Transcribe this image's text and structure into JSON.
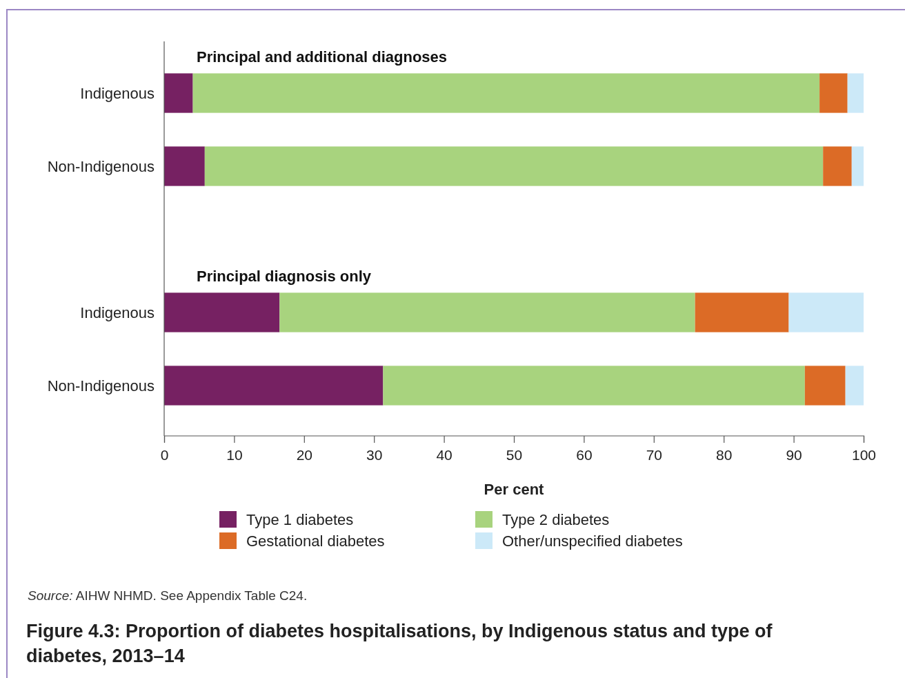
{
  "chart_data": {
    "type": "bar",
    "orientation": "horizontal",
    "stacked": true,
    "title": "Figure 4.3: Proportion of diabetes hospitalisations, by Indigenous status and type of diabetes, 2013–14",
    "xlabel": "Per cent",
    "annotations": [
      "Principal and additional diagnoses",
      "Principal diagnosis only",
      "Source: AIHW NHMD. See Appendix Table C24."
    ],
    "categories": [
      "Indigenous",
      "Non-Indigenous",
      null,
      "Indigenous",
      "Non-Indigenous"
    ],
    "series": [
      {
        "name": "Type 1 diabetes",
        "color": "#762162",
        "values": [
          4.1,
          5.8,
          null,
          16.5,
          31.3
        ]
      },
      {
        "name": "Type 2 diabetes",
        "color": "#a8d37e",
        "values": [
          89.6,
          88.4,
          null,
          59.4,
          60.3
        ]
      },
      {
        "name": "Gestational diabetes",
        "color": "#dc6b26",
        "values": [
          4.0,
          4.1,
          null,
          13.4,
          5.8
        ]
      },
      {
        "name": "Other/unspecified diabetes",
        "color": "#cce9f8",
        "values": [
          2.3,
          1.7,
          null,
          10.7,
          2.6
        ]
      }
    ],
    "xlim": [
      0,
      100
    ],
    "xticks": [
      0,
      10,
      20,
      30,
      40,
      50,
      60,
      70,
      80,
      90,
      100
    ],
    "legend": "bottom",
    "grid": false
  }
}
